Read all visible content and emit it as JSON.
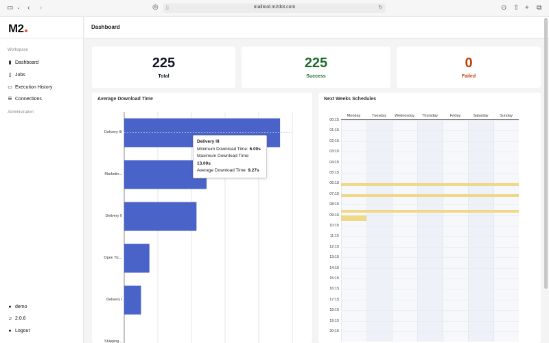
{
  "browser": {
    "url": "mailtool.m2dot.com"
  },
  "sidebar": {
    "logo": "M2",
    "workspace_label": "Workspace",
    "items": [
      {
        "label": "Dashboard",
        "icon": "bar-chart-icon"
      },
      {
        "label": "Jobs",
        "icon": "document-icon"
      },
      {
        "label": "Execution History",
        "icon": "credit-card-icon"
      },
      {
        "label": "Connections",
        "icon": "database-icon"
      }
    ],
    "administration_label": "Administration",
    "footer": [
      {
        "label": "demo",
        "icon": "user-icon"
      },
      {
        "label": "2.0.6",
        "icon": "music-note-icon"
      },
      {
        "label": "Logout",
        "icon": "user-icon"
      }
    ]
  },
  "header": {
    "title": "Dashboard"
  },
  "stats": {
    "total": {
      "value": "225",
      "label": "Total",
      "color": "#111827"
    },
    "success": {
      "value": "225",
      "label": "Success",
      "color": "#1e6b2a"
    },
    "failed": {
      "value": "0",
      "label": "Failed",
      "color": "#c2410c"
    }
  },
  "download_panel": {
    "title": "Average Download Time",
    "tooltip": {
      "title": "Delivery III",
      "min_label": "Minimum Download Time:",
      "min_value": "6.00s",
      "max_label": "Maximum Download Time:",
      "max_value": "13.00s",
      "avg_label": "Average Download Time:",
      "avg_value": "9.27s"
    }
  },
  "chart_data": {
    "type": "bar",
    "orientation": "horizontal",
    "title": "Average Download Time",
    "categories": [
      "Delivery III",
      "Marketin...",
      "Delivery II",
      "Open Tic...",
      "Delivery I",
      "Shipping..."
    ],
    "values": [
      9.27,
      4.9,
      4.3,
      1.5,
      1.0,
      null
    ],
    "xlim": [
      0,
      10
    ],
    "grid": true,
    "bar_color": "#4a63c8"
  },
  "schedule_panel": {
    "title": "Next Weeks Schedules",
    "days": [
      "Monday",
      "Tuesday",
      "Wednesday",
      "Thursday",
      "Friday",
      "Saturday",
      "Sunday"
    ],
    "times": [
      "00:15",
      "01:15",
      "02:15",
      "03:15",
      "04:15",
      "05:15",
      "06:15",
      "07:15",
      "08:15",
      "09:15",
      "10:15",
      "11:15",
      "12:15",
      "13:15",
      "14:15",
      "15:15",
      "16:15",
      "17:15",
      "18:15",
      "19:15",
      "20:15"
    ],
    "event_color": "#f0d88a",
    "events": [
      {
        "time": "06:15",
        "days": "all"
      },
      {
        "time": "07:15",
        "days": "all"
      },
      {
        "time": "08:45",
        "days": "all"
      },
      {
        "time": "09:15",
        "days": "Monday"
      }
    ]
  }
}
